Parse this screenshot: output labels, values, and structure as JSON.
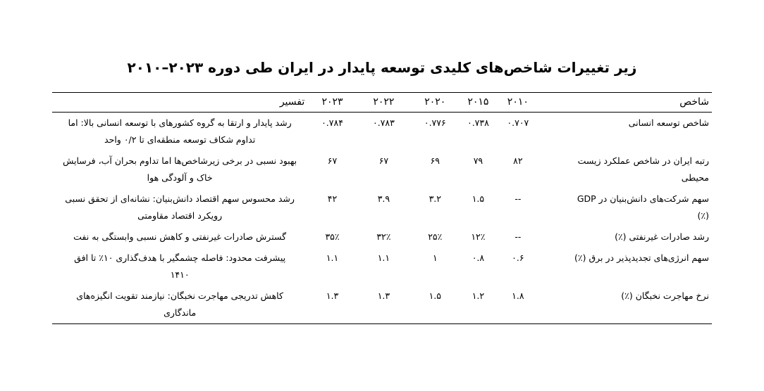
{
  "title": "زیر تغییرات شاخص‌های کلیدی توسعه پایدار در ایران طی دوره ۲۰۲۳–۲۰۱۰",
  "table": {
    "columns": [
      "شاخص",
      "۲۰۱۰",
      "۲۰۱۵",
      "۲۰۲۰",
      "۲۰۲۲",
      "۲۰۲۳",
      "تفسیر"
    ],
    "rows": [
      {
        "indicator": "شاخص توسعه انسانی",
        "v2010": "۰.۷۰۷",
        "v2015": "۰.۷۳۸",
        "v2020": "۰.۷۷۶",
        "v2022": "۰.۷۸۳",
        "v2023": "۰.۷۸۴",
        "interpretation": "رشد پایدار و ارتقا به گروه کشورهای با توسعه انسانی بالا: اما\nتداوم شکاف توسعه منطقه‌ای تا ۰/۲ واحد"
      },
      {
        "indicator": "رتبه ایران در شاخص عملکرد زیست\nمحیطی",
        "v2010": "۸۲",
        "v2015": "۷۹",
        "v2020": "۶۹",
        "v2022": "۶۷",
        "v2023": "۶۷",
        "interpretation": "بهبود نسبی در برخی زیرشاخص‌ها اما تداوم بحران آب، فرسایش\nخاک و آلودگی هوا"
      },
      {
        "indicator": "سهم شرکت‌های دانش‌بنیان در GDP\n(٪)",
        "v2010": "--",
        "v2015": "۱.۵",
        "v2020": "۳.۲",
        "v2022": "۳.۹",
        "v2023": "۴۲",
        "interpretation": "رشد محسوس سهم اقتصاد دانش‌بنیان: نشانه‌ای از تحقق نسبی\nرویکرد اقتصاد مقاومتی"
      },
      {
        "indicator": "رشد صادرات غیرنفتی (٪)",
        "v2010": "--",
        "v2015": "۱۲٪",
        "v2020": "۲۵٪",
        "v2022": "۳۲٪",
        "v2023": "۳۵٪",
        "interpretation": "گسترش صادرات غیرنفتی و کاهش نسبی وابستگی به نفت"
      },
      {
        "indicator": "سهم انرژی‌های تجدیدپذیر در برق (٪)",
        "v2010": "۰.۶",
        "v2015": "۰.۸",
        "v2020": "۱",
        "v2022": "۱.۱",
        "v2023": "۱.۱",
        "interpretation": "پیشرفت محدود: فاصله چشمگیر با هدف‌گذاری ۱۰٪ تا افق\n۱۴۱۰"
      },
      {
        "indicator": "نرخ مهاجرت نخبگان (٪)",
        "v2010": "۱.۸",
        "v2015": "۱.۲",
        "v2020": "۱.۵",
        "v2022": "۱.۳",
        "v2023": "۱.۳",
        "interpretation": "کاهش تدریجی مهاجرت نخبگان: نیازمند تقویت انگیزه‌های\nماندگاری"
      }
    ]
  }
}
